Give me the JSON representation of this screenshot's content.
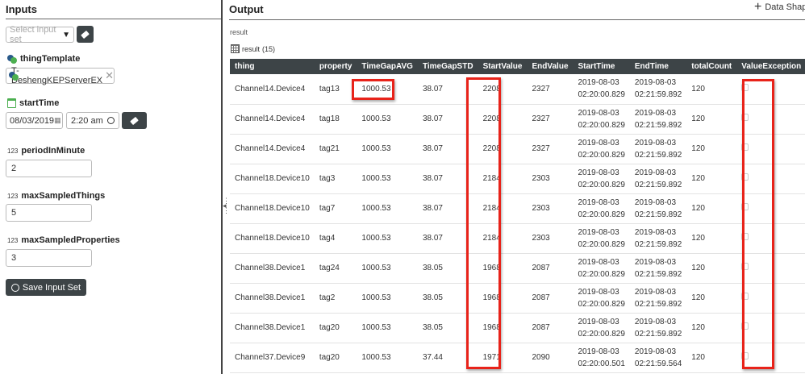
{
  "inputs": {
    "title": "Inputs",
    "input_set_placeholder": "Select input set",
    "thingTemplate": {
      "label": "thingTemplate",
      "value": "T-DeshengKEPServerEX"
    },
    "startTime": {
      "label": "startTime",
      "date": "08/03/2019",
      "time": "2:20 am"
    },
    "periodInMinute": {
      "label": "periodInMinute",
      "type": "123",
      "value": "2"
    },
    "maxSampledThings": {
      "label": "maxSampledThings",
      "type": "123",
      "value": "5"
    },
    "maxSampledProperties": {
      "label": "maxSampledProperties",
      "type": "123",
      "value": "3"
    },
    "save_label": "Save Input Set"
  },
  "output": {
    "title": "Output",
    "data_shape_label": "Data Shap",
    "result_label": "result",
    "table_label": "result",
    "count": "(15)",
    "columns": [
      "thing",
      "property",
      "TimeGapAVG",
      "TimeGapSTD",
      "StartValue",
      "EndValue",
      "StartTime",
      "EndTime",
      "totalCount",
      "ValueException"
    ],
    "rows": [
      [
        "Channel14.Device4",
        "tag13",
        "1000.53",
        "38.07",
        "2208",
        "2327",
        "2019-08-03",
        "02:20:00.829",
        "2019-08-03",
        "02:21:59.892",
        "120"
      ],
      [
        "Channel14.Device4",
        "tag18",
        "1000.53",
        "38.07",
        "2208",
        "2327",
        "2019-08-03",
        "02:20:00.829",
        "2019-08-03",
        "02:21:59.892",
        "120"
      ],
      [
        "Channel14.Device4",
        "tag21",
        "1000.53",
        "38.07",
        "2208",
        "2327",
        "2019-08-03",
        "02:20:00.829",
        "2019-08-03",
        "02:21:59.892",
        "120"
      ],
      [
        "Channel18.Device10",
        "tag3",
        "1000.53",
        "38.07",
        "2184",
        "2303",
        "2019-08-03",
        "02:20:00.829",
        "2019-08-03",
        "02:21:59.892",
        "120"
      ],
      [
        "Channel18.Device10",
        "tag7",
        "1000.53",
        "38.07",
        "2184",
        "2303",
        "2019-08-03",
        "02:20:00.829",
        "2019-08-03",
        "02:21:59.892",
        "120"
      ],
      [
        "Channel18.Device10",
        "tag4",
        "1000.53",
        "38.07",
        "2184",
        "2303",
        "2019-08-03",
        "02:20:00.829",
        "2019-08-03",
        "02:21:59.892",
        "120"
      ],
      [
        "Channel38.Device1",
        "tag24",
        "1000.53",
        "38.05",
        "1968",
        "2087",
        "2019-08-03",
        "02:20:00.829",
        "2019-08-03",
        "02:21:59.892",
        "120"
      ],
      [
        "Channel38.Device1",
        "tag2",
        "1000.53",
        "38.05",
        "1968",
        "2087",
        "2019-08-03",
        "02:20:00.829",
        "2019-08-03",
        "02:21:59.892",
        "120"
      ],
      [
        "Channel38.Device1",
        "tag20",
        "1000.53",
        "38.05",
        "1968",
        "2087",
        "2019-08-03",
        "02:20:00.829",
        "2019-08-03",
        "02:21:59.892",
        "120"
      ],
      [
        "Channel37.Device9",
        "tag20",
        "1000.53",
        "37.44",
        "1971",
        "2090",
        "2019-08-03",
        "02:20:00.501",
        "2019-08-03",
        "02:21:59.564",
        "120"
      ]
    ]
  },
  "colors": {
    "header_bg": "#3d4447",
    "highlight": "#e8231a"
  }
}
